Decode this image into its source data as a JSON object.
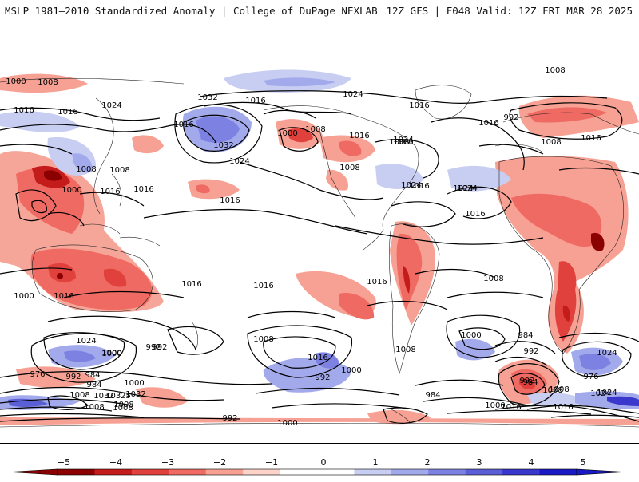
{
  "header": {
    "left": "MSLP 1981–2010 Standardized Anomaly | College of DuPage NEXLAB",
    "right": "12Z GFS | F048 Valid: 12Z FRI MAR 28 2025"
  },
  "isobar_labels": [
    "1024",
    "1016",
    "1000",
    "1008",
    "1016",
    "1024",
    "1016",
    "1032",
    "1032",
    "1016",
    "1000",
    "1008",
    "1016",
    "1024",
    "1016",
    "1008",
    "992",
    "1008",
    "1000",
    "1024",
    "1016",
    "1008",
    "1016",
    "1024",
    "1016",
    "1024",
    "1016",
    "1008",
    "1000",
    "1008",
    "1008",
    "1016",
    "1016",
    "1016",
    "1016",
    "1016",
    "1016",
    "1008",
    "1000",
    "1024",
    "1008",
    "992",
    "1000",
    "1016",
    "1024",
    "1000",
    "992",
    "976",
    "984",
    "992",
    "984",
    "1000",
    "1008",
    "1000",
    "1008",
    "1016",
    "1024",
    "992",
    "1000",
    "992",
    "984",
    "976",
    "984",
    "992",
    "1008",
    "1032",
    "1024",
    "1016",
    "1000",
    "1008",
    "984",
    "1008",
    "1016",
    "1032",
    "10325",
    "1024",
    "1008",
    "992",
    "1000",
    "1008"
  ],
  "colorbar": {
    "ticks": [
      "−5",
      "−4",
      "−3",
      "−2",
      "−1",
      "0",
      "1",
      "2",
      "3",
      "4",
      "5"
    ],
    "colors": [
      "#8b0000",
      "#c41b1b",
      "#e0413d",
      "#ef6a62",
      "#f6a193",
      "#fcd3c8",
      "#ffffff",
      "#ffffff",
      "#c8cdf2",
      "#a3aaec",
      "#7d82e2",
      "#5a5fd6",
      "#3a37cc",
      "#1a1ac4"
    ]
  }
}
